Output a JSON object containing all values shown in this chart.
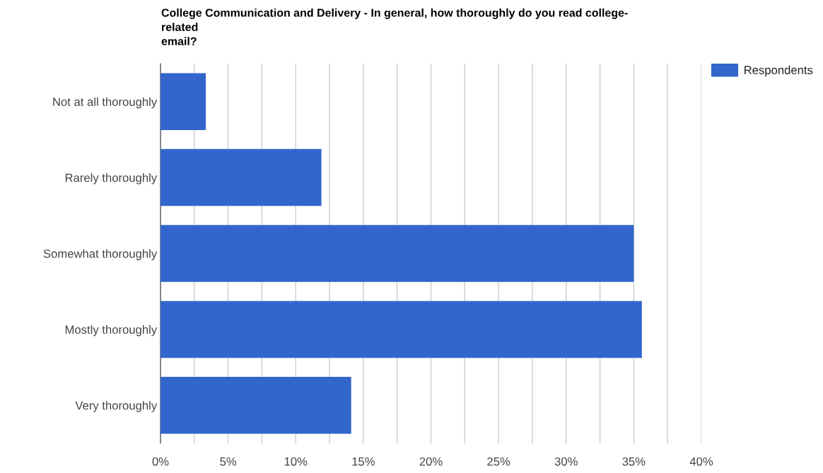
{
  "chart_data": {
    "type": "bar",
    "orientation": "horizontal",
    "title": "College Communication and Delivery - In general, how thoroughly do you read college-\nrelated\nemail?",
    "categories": [
      "Not at all thoroughly",
      "Rarely thoroughly",
      "Somewhat thoroughly",
      "Mostly thoroughly",
      "Very thoroughly"
    ],
    "series": [
      {
        "name": "Respondents",
        "color": "#3366cc",
        "values": [
          3.35,
          11.9,
          35.0,
          35.6,
          14.1
        ]
      }
    ],
    "xlim": [
      0,
      40
    ],
    "xticks": [
      {
        "value": 0,
        "label": "0%"
      },
      {
        "value": 2.5,
        "label": null
      },
      {
        "value": 5,
        "label": "5%"
      },
      {
        "value": 7.5,
        "label": null
      },
      {
        "value": 10,
        "label": "10%"
      },
      {
        "value": 12.5,
        "label": null
      },
      {
        "value": 15,
        "label": "15%"
      },
      {
        "value": 17.5,
        "label": null
      },
      {
        "value": 20,
        "label": "20%"
      },
      {
        "value": 22.5,
        "label": null
      },
      {
        "value": 25,
        "label": "25%"
      },
      {
        "value": 27.5,
        "label": null
      },
      {
        "value": 30,
        "label": "30%"
      },
      {
        "value": 32.5,
        "label": null
      },
      {
        "value": 35,
        "label": "35%"
      },
      {
        "value": 37.5,
        "label": null
      },
      {
        "value": 40,
        "label": "40%"
      }
    ],
    "grid": "x",
    "legend": "top right"
  }
}
